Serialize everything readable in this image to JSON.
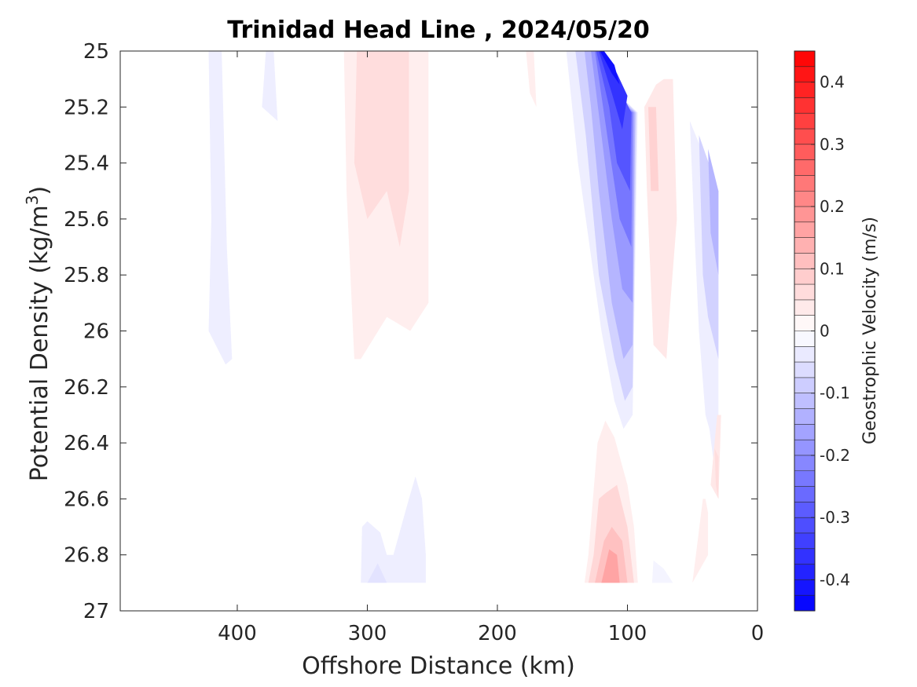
{
  "chart_data": {
    "type": "heatmap",
    "subtype": "filled-contour",
    "title": "Trinidad Head Line , 2024/05/20",
    "xlabel": "Offshore Distance (km)",
    "ylabel_main": "Potential Density (kg/m",
    "ylabel_sup": "3",
    "ylabel_close": ")",
    "x_axis": {
      "lim": [
        490,
        0
      ],
      "reversed": true,
      "ticks": [
        400,
        300,
        200,
        100,
        0
      ],
      "tick_labels": [
        "400",
        "300",
        "200",
        "100",
        "0"
      ]
    },
    "y_axis": {
      "lim": [
        25,
        27
      ],
      "reversed": true,
      "ticks": [
        25,
        25.2,
        25.4,
        25.6,
        25.8,
        26,
        26.2,
        26.4,
        26.6,
        26.8,
        27
      ],
      "tick_labels": [
        "25",
        "25.2",
        "25.4",
        "25.6",
        "25.8",
        "26",
        "26.2",
        "26.4",
        "26.6",
        "26.8",
        "27"
      ]
    },
    "colorbar": {
      "label": "Geostrophic Velocity (m/s)",
      "range": [
        -0.45,
        0.45
      ],
      "levels": 36,
      "ticks": [
        0.4,
        0.3,
        0.2,
        0.1,
        0,
        -0.1,
        -0.2,
        -0.3,
        -0.4
      ],
      "tick_labels": [
        "0.4",
        "0.3",
        "0.2",
        "0.1",
        "0",
        "-0.1",
        "-0.2",
        "-0.3",
        "-0.4"
      ],
      "colormap": "blue-white-red",
      "neg_color": "#0000ff",
      "pos_color": "#ff0000"
    },
    "regions": [
      {
        "v": -0.03,
        "pts": [
          [
            422,
            25
          ],
          [
            412,
            25
          ],
          [
            408,
            25.7
          ],
          [
            404,
            26.1
          ],
          [
            409,
            26.12
          ],
          [
            422,
            26.0
          ],
          [
            420,
            25.6
          ]
        ]
      },
      {
        "v": -0.03,
        "pts": [
          [
            378,
            25
          ],
          [
            372,
            25
          ],
          [
            369,
            25.25
          ],
          [
            381,
            25.2
          ]
        ]
      },
      {
        "v": 0.03,
        "pts": [
          [
            318,
            25
          ],
          [
            253,
            25
          ],
          [
            253,
            25.9
          ],
          [
            267,
            26.0
          ],
          [
            285,
            25.95
          ],
          [
            305,
            26.1
          ],
          [
            310,
            26.1
          ],
          [
            316,
            25.5
          ]
        ]
      },
      {
        "v": 0.06,
        "pts": [
          [
            308,
            25
          ],
          [
            268,
            25
          ],
          [
            268,
            25.5
          ],
          [
            275,
            25.7
          ],
          [
            285,
            25.5
          ],
          [
            300,
            25.6
          ],
          [
            310,
            25.4
          ]
        ]
      },
      {
        "v": 0.06,
        "pts": [
          [
            305,
            25
          ],
          [
            298,
            25
          ],
          [
            300,
            25.05
          ]
        ]
      },
      {
        "v": 0.03,
        "pts": [
          [
            178,
            25
          ],
          [
            172,
            25
          ],
          [
            170,
            25.2
          ],
          [
            175,
            25.15
          ]
        ]
      },
      {
        "v": -0.03,
        "pts": [
          [
            147,
            25
          ],
          [
            125,
            25
          ],
          [
            108,
            25.15
          ],
          [
            92,
            25.22
          ],
          [
            96,
            26.3
          ],
          [
            103,
            26.35
          ],
          [
            110,
            26.25
          ],
          [
            120,
            26.0
          ],
          [
            138,
            25.4
          ]
        ]
      },
      {
        "v": -0.08,
        "pts": [
          [
            140,
            25
          ],
          [
            125,
            25
          ],
          [
            108,
            25.15
          ],
          [
            93,
            25.22
          ],
          [
            96,
            26.2
          ],
          [
            102,
            26.25
          ],
          [
            110,
            26.1
          ],
          [
            122,
            25.8
          ],
          [
            132,
            25.3
          ]
        ]
      },
      {
        "v": -0.13,
        "pts": [
          [
            133,
            25
          ],
          [
            125,
            25
          ],
          [
            110,
            25.15
          ],
          [
            94,
            25.22
          ],
          [
            96,
            26.05
          ],
          [
            103,
            26.1
          ],
          [
            112,
            25.9
          ],
          [
            122,
            25.5
          ],
          [
            128,
            25.2
          ]
        ]
      },
      {
        "v": -0.18,
        "pts": [
          [
            128,
            25
          ],
          [
            124,
            25
          ],
          [
            112,
            25.15
          ],
          [
            95,
            25.22
          ],
          [
            96,
            25.9
          ],
          [
            104,
            25.85
          ],
          [
            112,
            25.6
          ],
          [
            120,
            25.3
          ]
        ]
      },
      {
        "v": -0.24,
        "pts": [
          [
            125,
            25
          ],
          [
            122,
            25
          ],
          [
            112,
            25.15
          ],
          [
            96,
            25.22
          ],
          [
            97,
            25.7
          ],
          [
            106,
            25.6
          ],
          [
            114,
            25.35
          ]
        ]
      },
      {
        "v": -0.3,
        "pts": [
          [
            124,
            25
          ],
          [
            120,
            25
          ],
          [
            110,
            25.1
          ],
          [
            97,
            25.22
          ],
          [
            98,
            25.5
          ],
          [
            108,
            25.4
          ],
          [
            114,
            25.2
          ]
        ]
      },
      {
        "v": -0.36,
        "pts": [
          [
            122,
            25
          ],
          [
            118,
            25
          ],
          [
            108,
            25.08
          ],
          [
            100,
            25.16
          ],
          [
            104,
            25.28
          ],
          [
            112,
            25.15
          ]
        ]
      },
      {
        "v": -0.42,
        "pts": [
          [
            121,
            25
          ],
          [
            118,
            25
          ],
          [
            110,
            25.05
          ],
          [
            106,
            25.12
          ],
          [
            112,
            25.08
          ]
        ]
      },
      {
        "v": 0.04,
        "pts": [
          [
            87,
            25.2
          ],
          [
            78,
            25.12
          ],
          [
            72,
            25.1
          ],
          [
            65,
            25.1
          ],
          [
            62,
            25.6
          ],
          [
            67,
            25.9
          ],
          [
            70,
            26.1
          ],
          [
            80,
            26.05
          ],
          [
            85,
            25.5
          ]
        ]
      },
      {
        "v": 0.08,
        "pts": [
          [
            84,
            25.2
          ],
          [
            78,
            25.2
          ],
          [
            76,
            25.5
          ],
          [
            82,
            25.5
          ]
        ]
      },
      {
        "v": -0.03,
        "pts": [
          [
            52,
            25.25
          ],
          [
            30,
            25.5
          ],
          [
            30,
            26.6
          ],
          [
            37,
            26.35
          ],
          [
            40,
            26.3
          ],
          [
            45,
            26.0
          ],
          [
            48,
            25.7
          ]
        ]
      },
      {
        "v": -0.08,
        "pts": [
          [
            45,
            25.3
          ],
          [
            30,
            25.5
          ],
          [
            30,
            26.1
          ],
          [
            38,
            25.95
          ],
          [
            42,
            25.8
          ]
        ]
      },
      {
        "v": -0.13,
        "pts": [
          [
            38,
            25.35
          ],
          [
            30,
            25.5
          ],
          [
            30,
            25.8
          ],
          [
            36,
            25.65
          ]
        ]
      },
      {
        "v": 0.04,
        "pts": [
          [
            31,
            26.3
          ],
          [
            28,
            26.3
          ],
          [
            30,
            26.6
          ],
          [
            36,
            26.55
          ]
        ]
      },
      {
        "v": 0.06,
        "pts": [
          [
            33,
            26.42
          ],
          [
            30,
            26.45
          ],
          [
            30,
            26.6
          ],
          [
            32,
            26.55
          ]
        ]
      },
      {
        "v": -0.03,
        "pts": [
          [
            305,
            26.9
          ],
          [
            255,
            26.9
          ],
          [
            255,
            26.8
          ],
          [
            258,
            26.6
          ],
          [
            263,
            26.52
          ],
          [
            268,
            26.6
          ],
          [
            280,
            26.8
          ],
          [
            285,
            26.8
          ],
          [
            290,
            26.72
          ],
          [
            300,
            26.68
          ],
          [
            304,
            26.7
          ]
        ]
      },
      {
        "v": -0.05,
        "pts": [
          [
            300,
            26.9
          ],
          [
            285,
            26.9
          ],
          [
            292,
            26.83
          ]
        ]
      },
      {
        "v": 0.03,
        "pts": [
          [
            133,
            26.9
          ],
          [
            92,
            26.9
          ],
          [
            95,
            26.7
          ],
          [
            100,
            26.55
          ],
          [
            110,
            26.38
          ],
          [
            117,
            26.32
          ],
          [
            123,
            26.4
          ],
          [
            130,
            26.8
          ]
        ]
      },
      {
        "v": 0.07,
        "pts": [
          [
            130,
            26.9
          ],
          [
            95,
            26.9
          ],
          [
            100,
            26.7
          ],
          [
            108,
            26.55
          ],
          [
            117,
            26.58
          ],
          [
            122,
            26.6
          ],
          [
            126,
            26.8
          ]
        ]
      },
      {
        "v": 0.11,
        "pts": [
          [
            125,
            26.9
          ],
          [
            100,
            26.9
          ],
          [
            104,
            26.75
          ],
          [
            112,
            26.7
          ],
          [
            118,
            26.75
          ]
        ]
      },
      {
        "v": 0.16,
        "pts": [
          [
            120,
            26.9
          ],
          [
            106,
            26.9
          ],
          [
            108,
            26.8
          ],
          [
            114,
            26.78
          ]
        ]
      },
      {
        "v": 0.03,
        "pts": [
          [
            50,
            26.9
          ],
          [
            38,
            26.8
          ],
          [
            38,
            26.65
          ],
          [
            40,
            26.6
          ],
          [
            42,
            26.6
          ]
        ]
      },
      {
        "v": -0.02,
        "pts": [
          [
            81,
            26.9
          ],
          [
            65,
            26.9
          ],
          [
            72,
            26.85
          ],
          [
            80,
            26.82
          ]
        ]
      }
    ]
  }
}
